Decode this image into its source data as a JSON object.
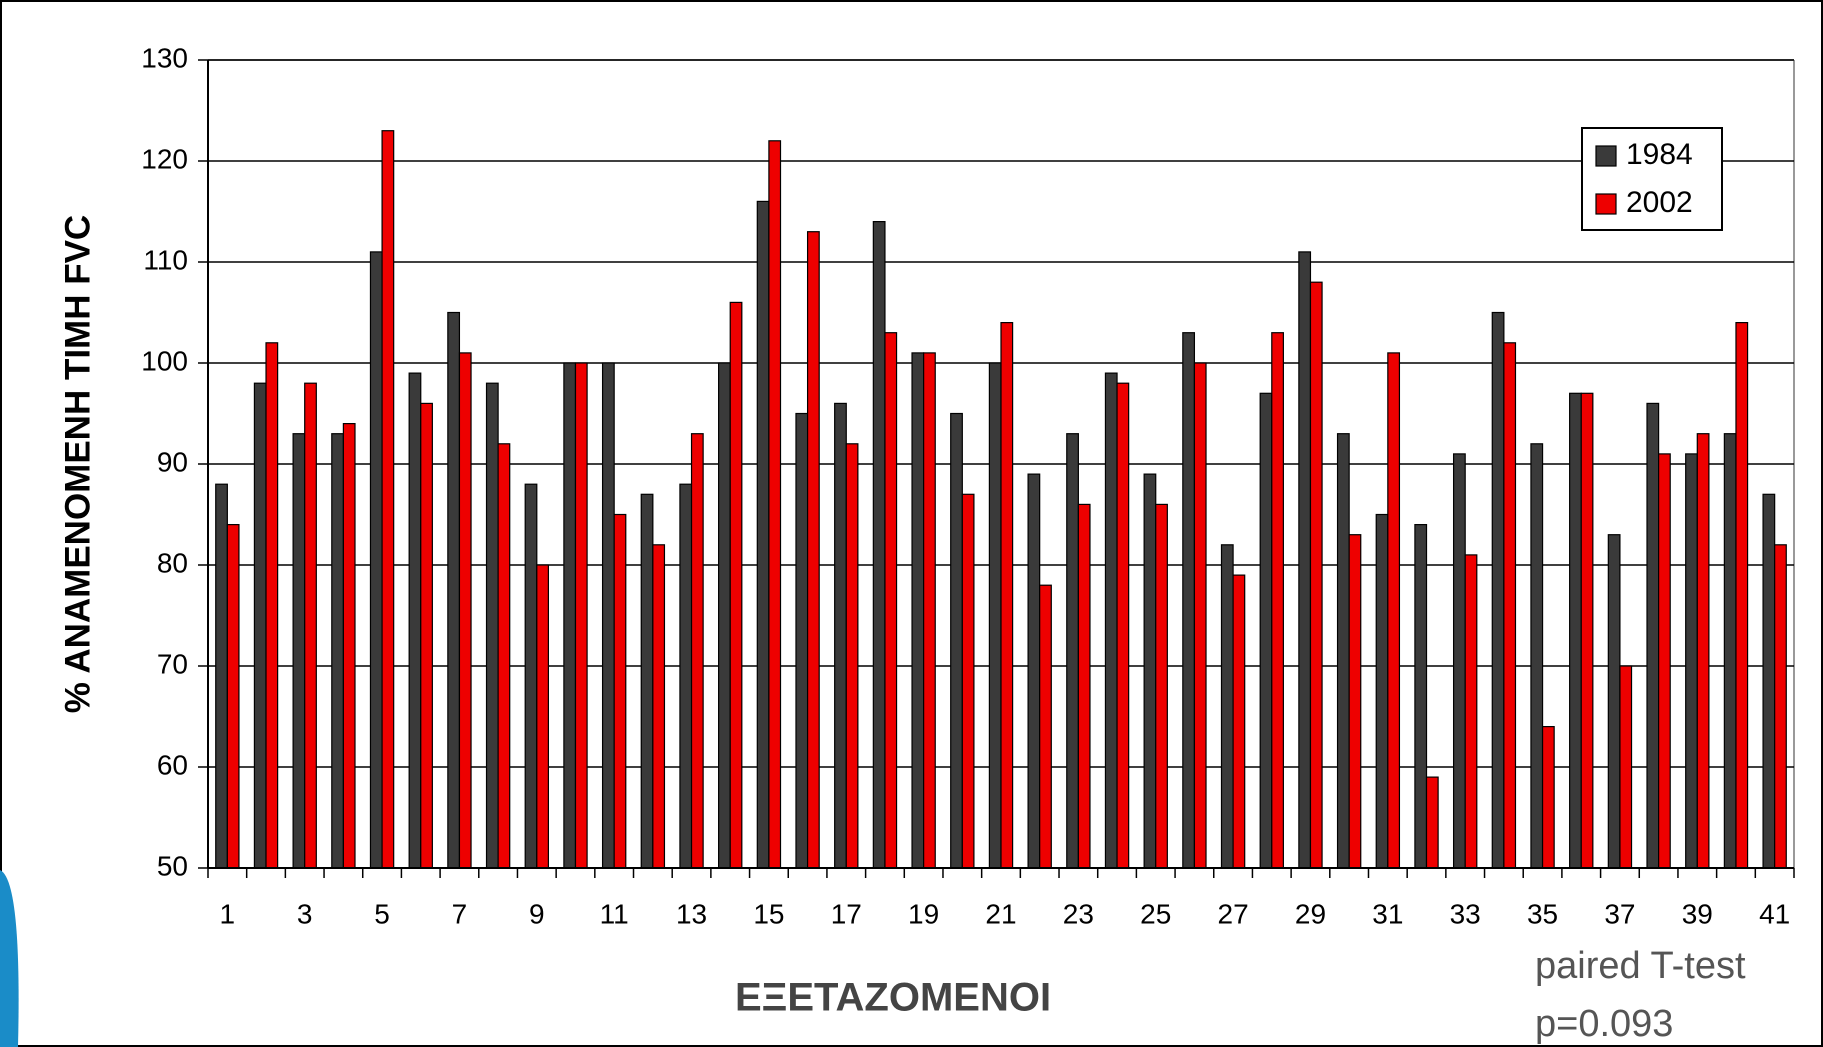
{
  "chart_data": {
    "type": "bar",
    "xlabel": "ΕΞΕΤΑΖΟΜΕΝΟΙ",
    "ylabel": "% ΑΝΑΜΕΝΟΜΕΝΗ ΤΙΜΗ FVC",
    "annotations": [
      "paired T-test",
      "p=0.093"
    ],
    "categories": [
      "1",
      null,
      "3",
      null,
      "5",
      null,
      "7",
      null,
      "9",
      null,
      "11",
      null,
      "13",
      null,
      "15",
      null,
      "17",
      null,
      "19",
      null,
      "21",
      null,
      "23",
      null,
      "25",
      null,
      "27",
      null,
      "29",
      null,
      "31",
      null,
      "33",
      null,
      "35",
      null,
      "37",
      null,
      "39",
      null,
      "41"
    ],
    "series": [
      {
        "name": "1984",
        "color": "#3a3a3a",
        "values": [
          88,
          98,
          93,
          93,
          111,
          99,
          105,
          98,
          88,
          100,
          100,
          87,
          88,
          100,
          116,
          95,
          96,
          114,
          101,
          95,
          100,
          89,
          93,
          99,
          89,
          103,
          82,
          97,
          111,
          93,
          85,
          84,
          91,
          105,
          92,
          97,
          83,
          96,
          91,
          93,
          87
        ]
      },
      {
        "name": "2002",
        "color": "#ee0000",
        "values": [
          84,
          102,
          98,
          94,
          123,
          96,
          101,
          92,
          80,
          100,
          85,
          82,
          93,
          106,
          122,
          113,
          92,
          103,
          101,
          87,
          104,
          78,
          86,
          98,
          86,
          100,
          79,
          103,
          108,
          83,
          101,
          59,
          81,
          102,
          64,
          97,
          70,
          91,
          93,
          104,
          82
        ]
      }
    ],
    "ylim": [
      50,
      130
    ],
    "yticks": [
      50,
      60,
      70,
      80,
      90,
      100,
      110,
      120,
      130
    ],
    "grid": true,
    "legend": "upper right"
  }
}
